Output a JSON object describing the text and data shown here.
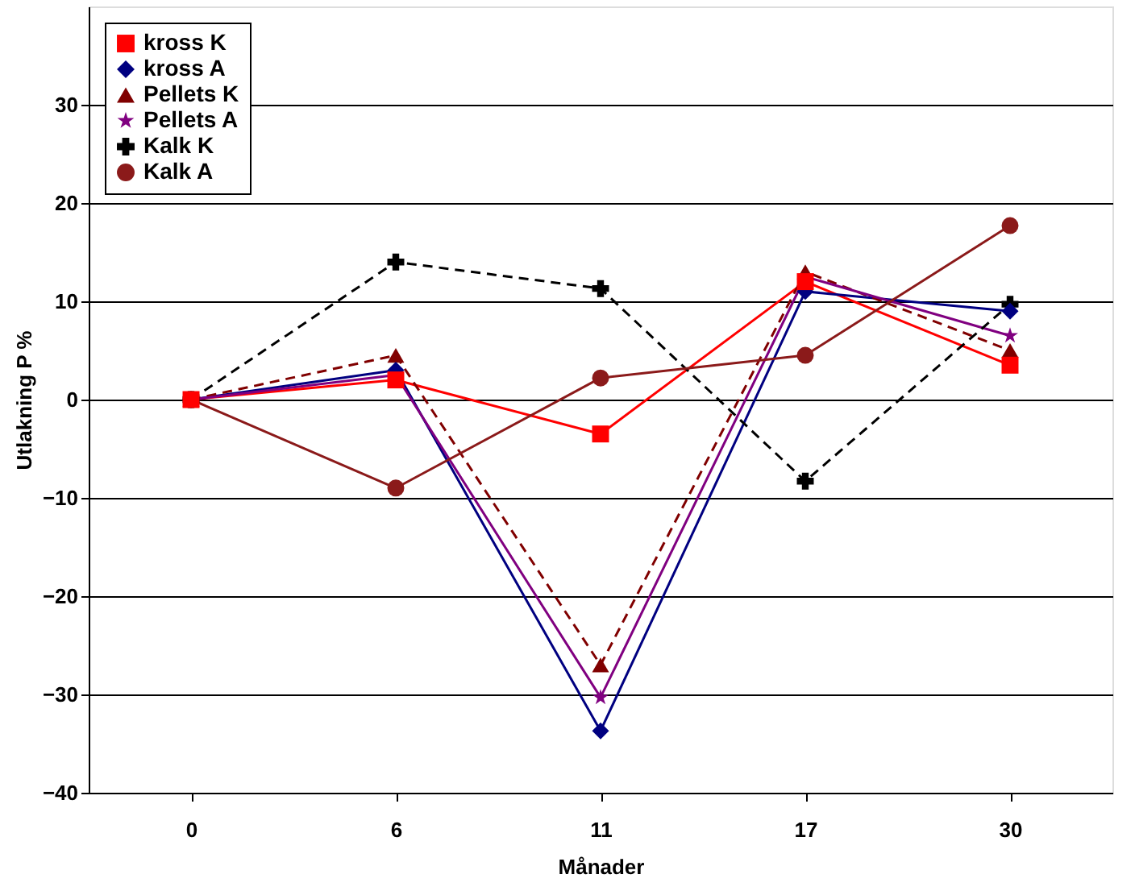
{
  "chart_data": {
    "type": "line",
    "xlabel": "Månader",
    "ylabel": "Utlakning P %",
    "categories": [
      "0",
      "6",
      "11",
      "17",
      "30"
    ],
    "series": [
      {
        "name": "kross K",
        "color": "#ff0000",
        "marker": "square",
        "line_style": "solid",
        "values": [
          0,
          2,
          -3.5,
          12,
          3.5
        ]
      },
      {
        "name": "kross A",
        "color": "#000080",
        "marker": "diamond",
        "line_style": "solid",
        "values": [
          0,
          3,
          -33.7,
          11,
          9
        ]
      },
      {
        "name": "Pellets K",
        "color": "#800000",
        "marker": "triangle",
        "line_style": "dashed",
        "values": [
          0,
          4.5,
          -27,
          13,
          5
        ]
      },
      {
        "name": "Pellets A",
        "color": "#800080",
        "marker": "star",
        "line_style": "solid",
        "values": [
          0,
          2.5,
          -30.3,
          12.5,
          6.5
        ]
      },
      {
        "name": "Kalk K",
        "color": "#000000",
        "marker": "cross",
        "line_style": "dashed",
        "values": [
          0,
          14,
          11.3,
          -8.3,
          9.7
        ]
      },
      {
        "name": "Kalk A",
        "color": "#8b1a1a",
        "marker": "circle",
        "line_style": "solid",
        "values": [
          0,
          -9,
          2.2,
          4.5,
          17.7
        ]
      }
    ],
    "ylim": [
      -40,
      40
    ],
    "yticks": [
      -40,
      -30,
      -20,
      -10,
      0,
      10,
      20,
      30
    ],
    "grid": "y",
    "legend": "top left"
  }
}
